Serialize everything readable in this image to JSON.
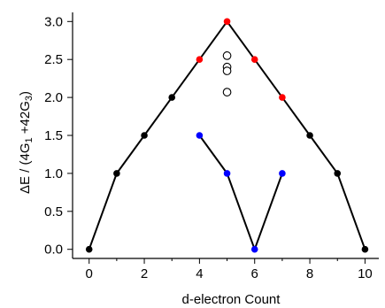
{
  "chart_data": {
    "type": "scatter",
    "xlabel": "d-electron Count",
    "ylabel_parts": {
      "prefix": "ΔE / (4G",
      "sub1": "1",
      "mid": " +42G",
      "sub2": "3",
      "suffix": ")"
    },
    "xlim": [
      -0.6,
      10.5
    ],
    "ylim": [
      -0.12,
      3.12
    ],
    "x_ticks": [
      0,
      2,
      4,
      6,
      8,
      10
    ],
    "x_minor_ticks": [
      1,
      3,
      5,
      7,
      9
    ],
    "y_ticks": [
      0.0,
      0.5,
      1.0,
      1.5,
      2.0,
      2.5,
      3.0
    ],
    "y_tick_labels": [
      "0.0",
      "0.5",
      "1.0",
      "1.5",
      "2.0",
      "2.5",
      "3.0"
    ],
    "series": [
      {
        "style": "line-markers",
        "line_color": "#000000",
        "points": [
          {
            "x": 0,
            "y": 0.0,
            "color": "#000000"
          },
          {
            "x": 1,
            "y": 1.0,
            "color": "#000000"
          },
          {
            "x": 2,
            "y": 1.5,
            "color": "#000000"
          },
          {
            "x": 3,
            "y": 2.0,
            "color": "#000000"
          },
          {
            "x": 4,
            "y": 2.5,
            "color": "#ff0000"
          },
          {
            "x": 5,
            "y": 3.0,
            "color": "#ff0000"
          },
          {
            "x": 6,
            "y": 2.5,
            "color": "#ff0000"
          },
          {
            "x": 7,
            "y": 2.0,
            "color": "#ff0000"
          },
          {
            "x": 8,
            "y": 1.5,
            "color": "#000000"
          },
          {
            "x": 9,
            "y": 1.0,
            "color": "#000000"
          },
          {
            "x": 10,
            "y": 0.0,
            "color": "#000000"
          }
        ]
      },
      {
        "style": "line-markers",
        "line_color": "#000000",
        "points": [
          {
            "x": 4,
            "y": 1.5,
            "color": "#0000ff"
          },
          {
            "x": 5,
            "y": 1.0,
            "color": "#0000ff"
          },
          {
            "x": 6,
            "y": 0.0,
            "color": "#0000ff"
          },
          {
            "x": 7,
            "y": 1.0,
            "color": "#0000ff"
          }
        ]
      },
      {
        "style": "open-circles",
        "line_color": "none",
        "points": [
          {
            "x": 5,
            "y": 2.55,
            "color": "#000000"
          },
          {
            "x": 5,
            "y": 2.4,
            "color": "#000000"
          },
          {
            "x": 5,
            "y": 2.35,
            "color": "#000000"
          },
          {
            "x": 5,
            "y": 2.07,
            "color": "#000000"
          }
        ]
      }
    ]
  }
}
